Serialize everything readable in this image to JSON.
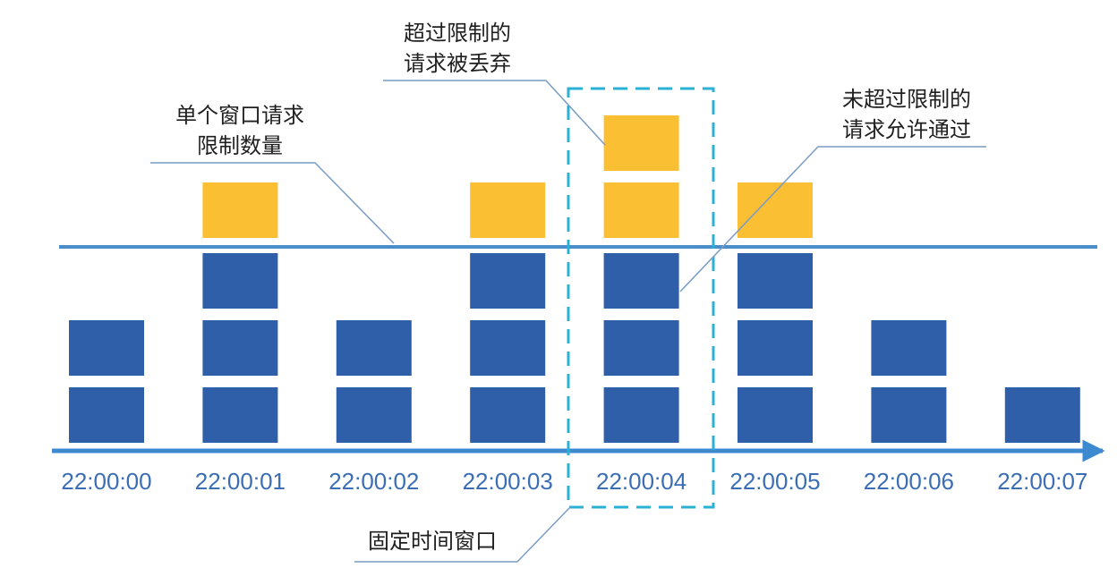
{
  "diagram": {
    "timestamps": [
      "22:00:00",
      "22:00:01",
      "22:00:02",
      "22:00:03",
      "22:00:04",
      "22:00:05",
      "22:00:06",
      "22:00:07"
    ],
    "window_limit": 3,
    "request_counts": [
      2,
      4,
      2,
      4,
      5,
      4,
      2,
      1
    ],
    "highlighted_window_index": 4,
    "annotations": {
      "limit_line": [
        "单个窗口请求",
        "限制数量"
      ],
      "dropped": [
        "超过限制的",
        "请求被丢弃"
      ],
      "passed": [
        "未超过限制的",
        "请求允许通过"
      ],
      "fixed_window": "固定时间窗口"
    },
    "colors": {
      "passed_block": "#2f5fa8",
      "dropped_block": "#fbbf33",
      "limit_line": "#4a8ec9",
      "axis": "#3d8ad0",
      "window_border": "#2bb0d6",
      "leader_line": "#7a9cc4"
    }
  }
}
